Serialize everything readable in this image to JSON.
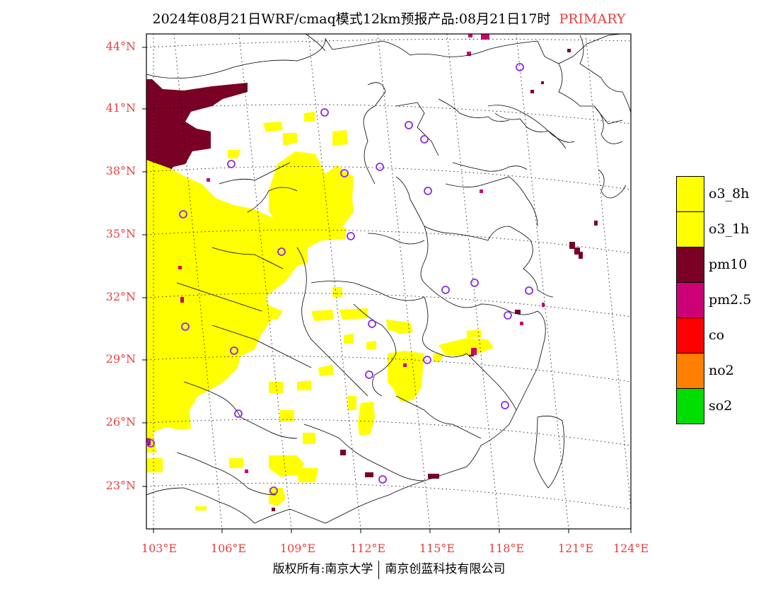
{
  "title": {
    "main": "2024年08月21日WRF/cmaq模式12km预报产品:08月21日17时",
    "tag": "PRIMARY"
  },
  "axes": {
    "lat_labels": [
      "44°N",
      "41°N",
      "38°N",
      "35°N",
      "32°N",
      "29°N",
      "26°N",
      "23°N"
    ],
    "lon_labels": [
      "103°E",
      "106°E",
      "109°E",
      "112°E",
      "115°E",
      "118°E",
      "121°E",
      "124°E"
    ]
  },
  "legend": [
    {
      "label": "o3_8h",
      "color": "#ffff00"
    },
    {
      "label": "o3_1h",
      "color": "#ffff00"
    },
    {
      "label": "pm10",
      "color": "#7a0026"
    },
    {
      "label": "pm2.5",
      "color": "#cc0077"
    },
    {
      "label": "co",
      "color": "#ff0000"
    },
    {
      "label": "no2",
      "color": "#ff8000"
    },
    {
      "label": "so2",
      "color": "#00dd00"
    }
  ],
  "map": {
    "colors": {
      "o3": "#ffff00",
      "pm10": "#7a0026",
      "pm25": "#cc0077",
      "station": "#8a2be2",
      "axis_label": "#e84040"
    }
  },
  "footer": {
    "left": "版权所有:南京大学",
    "right": "南京创蓝科技有限公司"
  }
}
